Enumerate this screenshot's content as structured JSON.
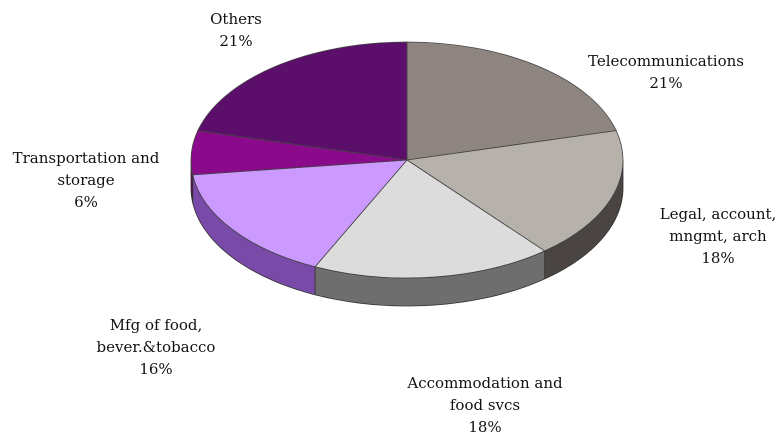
{
  "chart_data": {
    "type": "pie",
    "title": "",
    "style": "3d-tilted",
    "slices": [
      {
        "label": "Telecommunications",
        "value": 21,
        "value_label": "21%",
        "color": "#8f8580",
        "side_color": "#5e5652"
      },
      {
        "label": "Legal, account, mngmt, arch",
        "value": 18,
        "value_label": "18%",
        "color": "#b7b1ab",
        "side_color": "#4a4542"
      },
      {
        "label": "Accommodation and food svcs",
        "value": 18,
        "value_label": "18%",
        "color": "#dcdcdc",
        "side_color": "#6e6e6e"
      },
      {
        "label": "Mfg of food, bever.&tobacco",
        "value": 16,
        "value_label": "16%",
        "color": "#cc99ff",
        "side_color": "#7a4aa8"
      },
      {
        "label": "Transportation and storage",
        "value": 6,
        "value_label": "6%",
        "color": "#8b0a8b",
        "side_color": "#5a0a5a"
      },
      {
        "label": "Others",
        "value": 21,
        "value_label": "21%",
        "color": "#5b0f6b",
        "side_color": "#3a0a45"
      }
    ],
    "label_lines": [
      [
        "Telecommunications",
        "21%"
      ],
      [
        "Legal, account,",
        "mngmt, arch",
        "18%"
      ],
      [
        "Accommodation and",
        "food svcs",
        "18%"
      ],
      [
        "Mfg of food,",
        "bever.&tobacco",
        "16%"
      ],
      [
        "Transportation and",
        "storage",
        "6%"
      ],
      [
        "Others",
        "21%"
      ]
    ]
  }
}
